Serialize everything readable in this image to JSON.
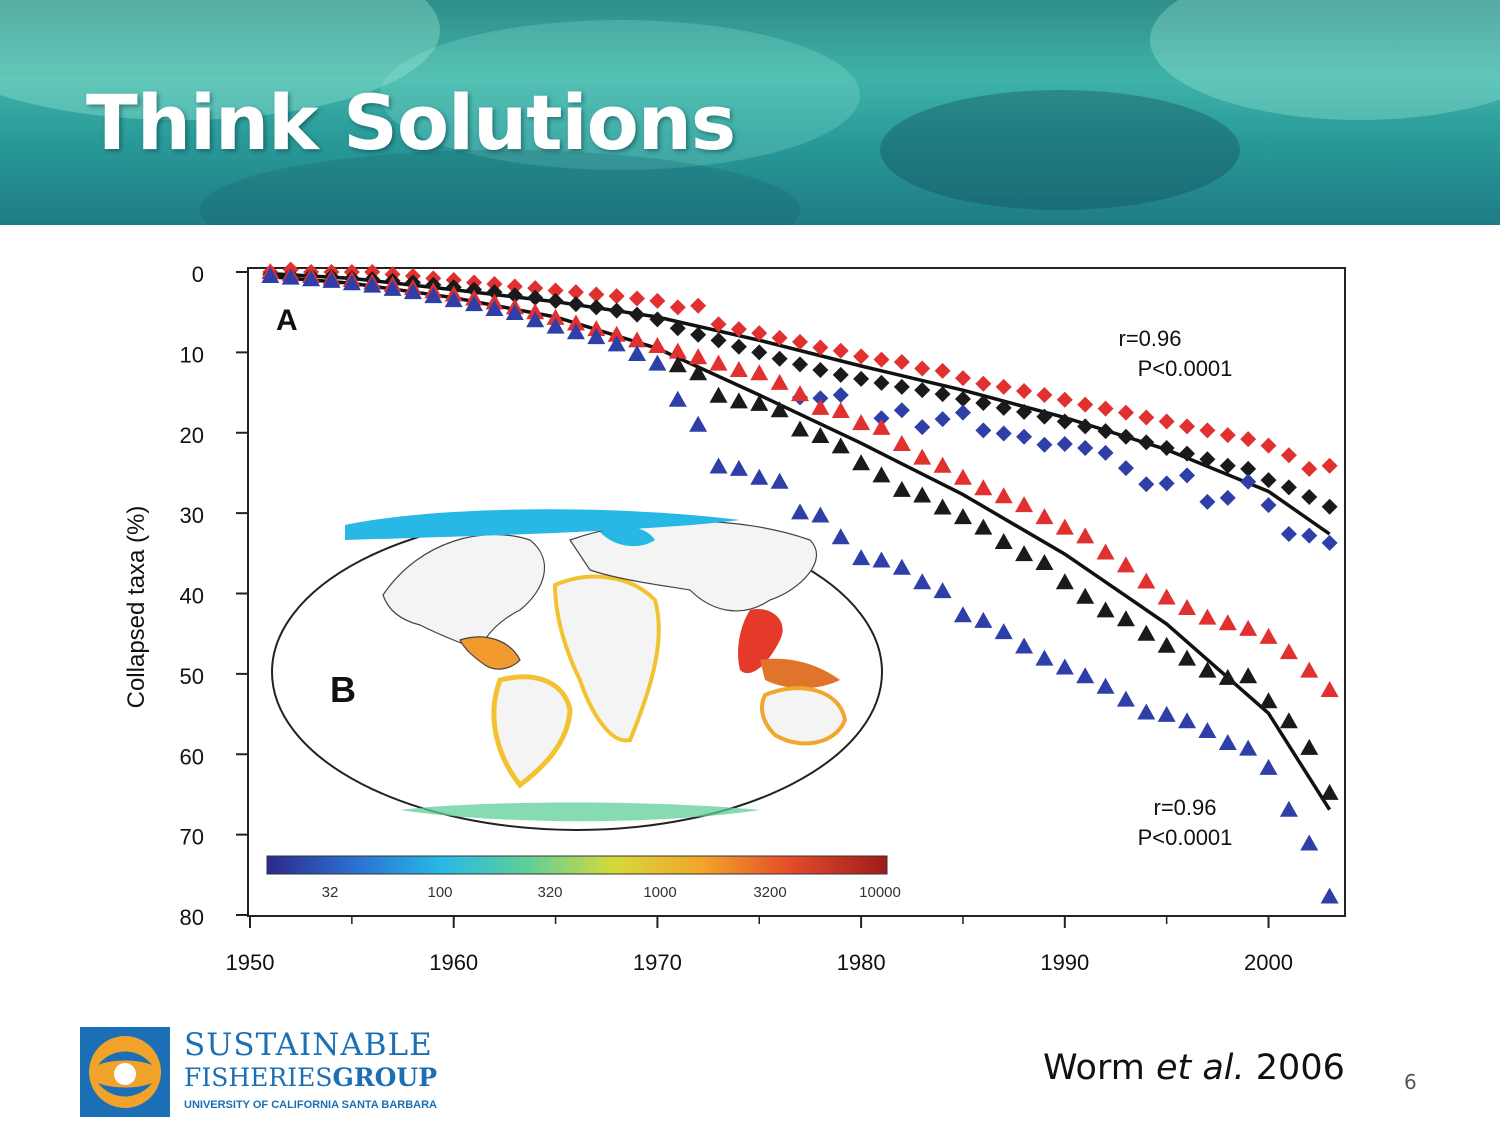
{
  "slide": {
    "title": "Think Solutions",
    "citation_author": "Worm ",
    "citation_etal": "et al.",
    "citation_year": " 2006",
    "page_number": "6"
  },
  "logo": {
    "line1": "SUSTAINABLE",
    "line2a": "FISHERIES",
    "line2b": "GROUP",
    "line3": "UNIVERSITY OF CALIFORNIA SANTA BARBARA",
    "colors": {
      "blue": "#1b6fb4",
      "orange": "#f0a22b"
    }
  },
  "chart_data": {
    "type": "scatter",
    "panel_label_a": "A",
    "panel_label_b": "B",
    "ylabel": "Collapsed taxa (%)",
    "xlabel": "",
    "xlim": [
      1950,
      2004
    ],
    "ylim": [
      0,
      80
    ],
    "y_inverted": true,
    "x_ticks": [
      1950,
      1960,
      1970,
      1980,
      1990,
      2000
    ],
    "y_ticks": [
      0,
      10,
      20,
      30,
      40,
      50,
      60,
      70,
      80
    ],
    "annotations": [
      {
        "r": "r=0.96",
        "p": "P<0.0001",
        "near": "diamond series"
      },
      {
        "r": "r=0.96",
        "p": "P<0.0001",
        "near": "triangle series"
      }
    ],
    "colorbar": {
      "ticks": [
        "32",
        "100",
        "320",
        "1000",
        "3200",
        "10000"
      ],
      "colors": [
        "#2b2a8c",
        "#2c6fd0",
        "#27b8e6",
        "#5fcf9a",
        "#d6d93a",
        "#f2a62b",
        "#e54d2a",
        "#9e1b1b"
      ]
    },
    "series": [
      {
        "marker": "diamond",
        "color": "#e03030",
        "points": [
          [
            1951,
            0
          ],
          [
            1952,
            -0.3
          ],
          [
            1953,
            0
          ],
          [
            1954,
            0
          ],
          [
            1955,
            0
          ],
          [
            1956,
            0
          ],
          [
            1957,
            0.3
          ],
          [
            1958,
            0.5
          ],
          [
            1959,
            0.8
          ],
          [
            1960,
            1.0
          ],
          [
            1961,
            1.3
          ],
          [
            1962,
            1.5
          ],
          [
            1963,
            1.8
          ],
          [
            1964,
            2.0
          ],
          [
            1965,
            2.3
          ],
          [
            1966,
            2.5
          ],
          [
            1967,
            2.8
          ],
          [
            1968,
            3.0
          ],
          [
            1969,
            3.3
          ],
          [
            1970,
            3.6
          ],
          [
            1971,
            4.4
          ],
          [
            1972,
            4.2
          ],
          [
            1973,
            6.5
          ],
          [
            1974,
            7.1
          ],
          [
            1975,
            7.6
          ],
          [
            1976,
            8.2
          ],
          [
            1977,
            8.7
          ],
          [
            1978,
            9.4
          ],
          [
            1979,
            9.8
          ],
          [
            1980,
            10.5
          ],
          [
            1981,
            10.9
          ],
          [
            1982,
            11.2
          ],
          [
            1983,
            12.0
          ],
          [
            1984,
            12.3
          ],
          [
            1985,
            13.2
          ],
          [
            1986,
            13.9
          ],
          [
            1987,
            14.3
          ],
          [
            1988,
            14.8
          ],
          [
            1989,
            15.3
          ],
          [
            1990,
            15.9
          ],
          [
            1991,
            16.5
          ],
          [
            1992,
            17.0
          ],
          [
            1993,
            17.5
          ],
          [
            1994,
            18.1
          ],
          [
            1995,
            18.6
          ],
          [
            1996,
            19.2
          ],
          [
            1997,
            19.7
          ],
          [
            1998,
            20.3
          ],
          [
            1999,
            20.8
          ],
          [
            2000,
            21.6
          ],
          [
            2001,
            22.8
          ],
          [
            2002,
            24.5
          ],
          [
            2003,
            24.1
          ]
        ]
      },
      {
        "marker": "diamond",
        "color": "#1a1a1a",
        "points": [
          [
            1951,
            0.3
          ],
          [
            1952,
            0.4
          ],
          [
            1953,
            0.5
          ],
          [
            1954,
            0.6
          ],
          [
            1955,
            0.8
          ],
          [
            1956,
            0.9
          ],
          [
            1957,
            1.1
          ],
          [
            1958,
            1.3
          ],
          [
            1959,
            1.6
          ],
          [
            1960,
            1.9
          ],
          [
            1961,
            2.2
          ],
          [
            1962,
            2.5
          ],
          [
            1963,
            2.9
          ],
          [
            1964,
            3.2
          ],
          [
            1965,
            3.6
          ],
          [
            1966,
            4.0
          ],
          [
            1967,
            4.4
          ],
          [
            1968,
            4.8
          ],
          [
            1969,
            5.3
          ],
          [
            1970,
            5.9
          ],
          [
            1971,
            7.0
          ],
          [
            1972,
            7.8
          ],
          [
            1973,
            8.5
          ],
          [
            1974,
            9.3
          ],
          [
            1975,
            10.0
          ],
          [
            1976,
            10.8
          ],
          [
            1977,
            11.5
          ],
          [
            1978,
            12.2
          ],
          [
            1979,
            12.8
          ],
          [
            1980,
            13.3
          ],
          [
            1981,
            13.8
          ],
          [
            1982,
            14.3
          ],
          [
            1983,
            14.7
          ],
          [
            1984,
            15.2
          ],
          [
            1985,
            15.8
          ],
          [
            1986,
            16.3
          ],
          [
            1987,
            16.9
          ],
          [
            1988,
            17.4
          ],
          [
            1989,
            18.0
          ],
          [
            1990,
            18.6
          ],
          [
            1991,
            19.2
          ],
          [
            1992,
            19.8
          ],
          [
            1993,
            20.5
          ],
          [
            1994,
            21.2
          ],
          [
            1995,
            21.9
          ],
          [
            1996,
            22.6
          ],
          [
            1997,
            23.3
          ],
          [
            1998,
            24.1
          ],
          [
            1999,
            24.5
          ],
          [
            2000,
            25.9
          ],
          [
            2001,
            26.8
          ],
          [
            2002,
            28.0
          ],
          [
            2003,
            29.2
          ]
        ]
      },
      {
        "marker": "diamond",
        "color": "#2e3fa8",
        "points": [
          [
            1977,
            15.6
          ],
          [
            1978,
            15.7
          ],
          [
            1979,
            15.3
          ],
          [
            1981,
            18.2
          ],
          [
            1982,
            17.2
          ],
          [
            1983,
            19.3
          ],
          [
            1984,
            18.3
          ],
          [
            1985,
            17.5
          ],
          [
            1986,
            19.7
          ],
          [
            1987,
            20.1
          ],
          [
            1988,
            20.5
          ],
          [
            1989,
            21.5
          ],
          [
            1990,
            21.4
          ],
          [
            1991,
            21.9
          ],
          [
            1992,
            22.5
          ],
          [
            1993,
            24.4
          ],
          [
            1994,
            26.4
          ],
          [
            1995,
            26.3
          ],
          [
            1996,
            25.3
          ],
          [
            1997,
            28.6
          ],
          [
            1998,
            28.1
          ],
          [
            1999,
            26.1
          ],
          [
            2000,
            29.0
          ],
          [
            2001,
            32.6
          ],
          [
            2002,
            32.8
          ],
          [
            2003,
            33.7
          ]
        ]
      },
      {
        "marker": "triangle",
        "color": "#e03030",
        "points": [
          [
            1951,
            0
          ],
          [
            1952,
            0.3
          ],
          [
            1953,
            0.5
          ],
          [
            1954,
            0.8
          ],
          [
            1955,
            1.0
          ],
          [
            1956,
            1.3
          ],
          [
            1957,
            1.6
          ],
          [
            1958,
            2.0
          ],
          [
            1959,
            2.4
          ],
          [
            1960,
            2.8
          ],
          [
            1961,
            3.3
          ],
          [
            1962,
            3.8
          ],
          [
            1963,
            4.4
          ],
          [
            1964,
            5.0
          ],
          [
            1965,
            5.7
          ],
          [
            1966,
            6.4
          ],
          [
            1967,
            7.1
          ],
          [
            1968,
            7.8
          ],
          [
            1969,
            8.5
          ],
          [
            1970,
            9.2
          ],
          [
            1971,
            9.9
          ],
          [
            1972,
            10.6
          ],
          [
            1973,
            11.4
          ],
          [
            1974,
            12.2
          ],
          [
            1975,
            12.6
          ],
          [
            1976,
            13.8
          ],
          [
            1977,
            15.2
          ],
          [
            1978,
            16.9
          ],
          [
            1979,
            17.3
          ],
          [
            1980,
            18.8
          ],
          [
            1981,
            19.4
          ],
          [
            1982,
            21.4
          ],
          [
            1983,
            23.1
          ],
          [
            1984,
            24.1
          ],
          [
            1985,
            25.6
          ],
          [
            1986,
            26.9
          ],
          [
            1987,
            27.9
          ],
          [
            1988,
            29.0
          ],
          [
            1989,
            30.5
          ],
          [
            1990,
            31.8
          ],
          [
            1991,
            32.9
          ],
          [
            1992,
            34.9
          ],
          [
            1993,
            36.5
          ],
          [
            1994,
            38.5
          ],
          [
            1995,
            40.5
          ],
          [
            1996,
            41.8
          ],
          [
            1997,
            43.0
          ],
          [
            1998,
            43.7
          ],
          [
            1999,
            44.4
          ],
          [
            2000,
            45.4
          ],
          [
            2001,
            47.3
          ],
          [
            2002,
            49.6
          ],
          [
            2003,
            52.0
          ]
        ]
      },
      {
        "marker": "triangle",
        "color": "#1a1a1a",
        "points": [
          [
            1971,
            11.6
          ],
          [
            1972,
            12.6
          ],
          [
            1973,
            15.4
          ],
          [
            1974,
            16.1
          ],
          [
            1975,
            16.4
          ],
          [
            1976,
            17.2
          ],
          [
            1977,
            19.6
          ],
          [
            1978,
            20.4
          ],
          [
            1979,
            21.7
          ],
          [
            1980,
            23.8
          ],
          [
            1981,
            25.3
          ],
          [
            1982,
            27.1
          ],
          [
            1983,
            27.8
          ],
          [
            1984,
            29.3
          ],
          [
            1985,
            30.5
          ],
          [
            1986,
            31.8
          ],
          [
            1987,
            33.6
          ],
          [
            1988,
            35.1
          ],
          [
            1989,
            36.2
          ],
          [
            1990,
            38.6
          ],
          [
            1991,
            40.4
          ],
          [
            1992,
            42.1
          ],
          [
            1993,
            43.2
          ],
          [
            1994,
            45.0
          ],
          [
            1995,
            46.5
          ],
          [
            1996,
            48.1
          ],
          [
            1997,
            49.6
          ],
          [
            1998,
            50.5
          ],
          [
            1999,
            50.3
          ],
          [
            2000,
            53.4
          ],
          [
            2001,
            55.9
          ],
          [
            2002,
            59.2
          ],
          [
            2003,
            64.8
          ]
        ]
      },
      {
        "marker": "triangle",
        "color": "#2e3fa8",
        "points": [
          [
            1951,
            0.5
          ],
          [
            1952,
            0.7
          ],
          [
            1953,
            0.9
          ],
          [
            1954,
            1.1
          ],
          [
            1955,
            1.4
          ],
          [
            1956,
            1.7
          ],
          [
            1957,
            2.1
          ],
          [
            1958,
            2.5
          ],
          [
            1959,
            3.0
          ],
          [
            1960,
            3.5
          ],
          [
            1961,
            4.0
          ],
          [
            1962,
            4.6
          ],
          [
            1963,
            5.1
          ],
          [
            1964,
            6.0
          ],
          [
            1965,
            6.8
          ],
          [
            1966,
            7.5
          ],
          [
            1967,
            8.1
          ],
          [
            1968,
            9.0
          ],
          [
            1969,
            10.2
          ],
          [
            1970,
            11.4
          ],
          [
            1971,
            15.9
          ],
          [
            1972,
            19.0
          ],
          [
            1973,
            24.2
          ],
          [
            1974,
            24.5
          ],
          [
            1975,
            25.6
          ],
          [
            1976,
            26.1
          ],
          [
            1977,
            29.9
          ],
          [
            1978,
            30.3
          ],
          [
            1979,
            33.0
          ],
          [
            1980,
            35.6
          ],
          [
            1981,
            35.9
          ],
          [
            1982,
            36.8
          ],
          [
            1983,
            38.6
          ],
          [
            1984,
            39.7
          ],
          [
            1985,
            42.7
          ],
          [
            1986,
            43.4
          ],
          [
            1987,
            44.8
          ],
          [
            1988,
            46.6
          ],
          [
            1989,
            48.1
          ],
          [
            1990,
            49.2
          ],
          [
            1991,
            50.3
          ],
          [
            1992,
            51.6
          ],
          [
            1993,
            53.2
          ],
          [
            1994,
            54.8
          ],
          [
            1995,
            55.1
          ],
          [
            1996,
            55.9
          ],
          [
            1997,
            57.1
          ],
          [
            1998,
            58.6
          ],
          [
            1999,
            59.3
          ],
          [
            2000,
            61.7
          ],
          [
            2001,
            66.9
          ],
          [
            2002,
            71.1
          ],
          [
            2003,
            77.7
          ]
        ]
      }
    ],
    "fit_lines": [
      {
        "color": "#111111",
        "points": [
          [
            1951,
            0.2
          ],
          [
            1955,
            0.8
          ],
          [
            1960,
            2.2
          ],
          [
            1965,
            3.7
          ],
          [
            1970,
            5.6
          ],
          [
            1975,
            8.5
          ],
          [
            1980,
            11.7
          ],
          [
            1985,
            14.7
          ],
          [
            1990,
            18.1
          ],
          [
            1995,
            22.1
          ],
          [
            2000,
            27.3
          ],
          [
            2003,
            32.6
          ]
        ]
      },
      {
        "color": "#111111",
        "points": [
          [
            1951,
            0.6
          ],
          [
            1955,
            1.4
          ],
          [
            1960,
            3.2
          ],
          [
            1965,
            5.6
          ],
          [
            1970,
            9.5
          ],
          [
            1975,
            15.3
          ],
          [
            1980,
            21.3
          ],
          [
            1985,
            27.7
          ],
          [
            1990,
            35.1
          ],
          [
            1995,
            43.8
          ],
          [
            2000,
            54.9
          ],
          [
            2003,
            66.9
          ]
        ]
      }
    ]
  }
}
